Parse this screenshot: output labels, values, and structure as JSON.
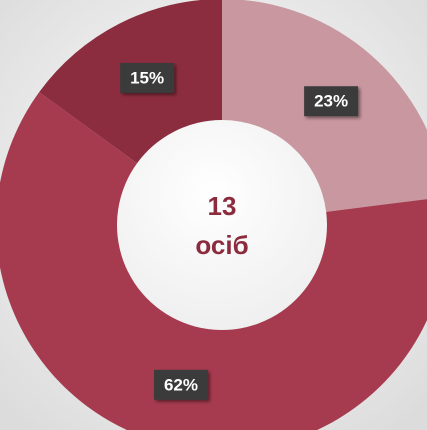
{
  "chart_data": {
    "type": "pie",
    "donut": true,
    "values": [
      23,
      62,
      15
    ],
    "value_labels": [
      "23%",
      "62%",
      "15%"
    ],
    "colors": [
      "#c9979f",
      "#a63b4f",
      "#8c2d3f"
    ],
    "center_text": [
      "13",
      "осіб"
    ]
  }
}
